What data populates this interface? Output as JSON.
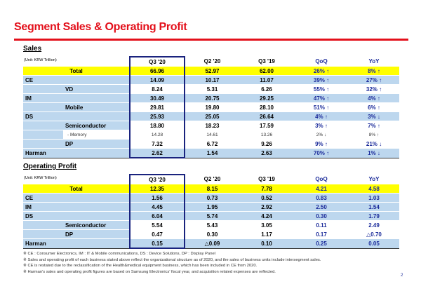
{
  "title": "Segment Sales & Operating Profit",
  "page_number": "2",
  "sales": {
    "label": "Sales",
    "unit": "(Unit: KRW Trillion)",
    "headers": [
      "Q3 '20",
      "Q2 '20",
      "Q3 '19",
      "QoQ",
      "YoY"
    ],
    "rows": [
      {
        "level": "total",
        "name": "Total",
        "sub": "",
        "values": [
          "66.96",
          "52.97",
          "62.00",
          "26% ↑",
          "8% ↑"
        ]
      },
      {
        "level": "seg",
        "name": "CE",
        "sub": "",
        "values": [
          "14.09",
          "10.17",
          "11.07",
          "39% ↑",
          "27% ↑"
        ]
      },
      {
        "level": "sub",
        "name": "",
        "sub": "VD",
        "values": [
          "8.24",
          "5.31",
          "6.26",
          "55% ↑",
          "32% ↑"
        ]
      },
      {
        "level": "seg",
        "name": "IM",
        "sub": "",
        "values": [
          "30.49",
          "20.75",
          "29.25",
          "47% ↑",
          "4% ↑"
        ]
      },
      {
        "level": "sub",
        "name": "",
        "sub": "Mobile",
        "values": [
          "29.81",
          "19.80",
          "28.10",
          "51% ↑",
          "6% ↑"
        ]
      },
      {
        "level": "seg",
        "name": "DS",
        "sub": "",
        "values": [
          "25.93",
          "25.05",
          "26.64",
          "4% ↑",
          "3% ↓"
        ]
      },
      {
        "level": "sub",
        "name": "",
        "sub": "Semiconductor",
        "values": [
          "18.80",
          "18.23",
          "17.59",
          "3% ↑",
          "7% ↑"
        ]
      },
      {
        "level": "subsub",
        "name": "",
        "sub": "- Memory",
        "values": [
          "14.28",
          "14.61",
          "13.26",
          "2% ↓",
          "8% ↑"
        ]
      },
      {
        "level": "sub",
        "name": "",
        "sub": "DP",
        "values": [
          "7.32",
          "6.72",
          "9.26",
          "9% ↑",
          "21% ↓"
        ]
      },
      {
        "level": "seg",
        "name": "Harman",
        "sub": "",
        "values": [
          "2.62",
          "1.54",
          "2.63",
          "70% ↑",
          "1% ↓"
        ]
      }
    ]
  },
  "op": {
    "label": "Operating Profit",
    "unit": "(Unit: KRW Trillion)",
    "headers": [
      "Q3 '20",
      "Q2 '20",
      "Q3 '19",
      "QoQ",
      "YoY"
    ],
    "rows": [
      {
        "level": "total",
        "name": "Total",
        "sub": "",
        "values": [
          "12.35",
          "8.15",
          "7.78",
          "4.21",
          "4.58"
        ]
      },
      {
        "level": "seg",
        "name": "CE",
        "sub": "",
        "values": [
          "1.56",
          "0.73",
          "0.52",
          "0.83",
          "1.03"
        ]
      },
      {
        "level": "seg",
        "name": "IM",
        "sub": "",
        "values": [
          "4.45",
          "1.95",
          "2.92",
          "2.50",
          "1.54"
        ]
      },
      {
        "level": "seg",
        "name": "DS",
        "sub": "",
        "values": [
          "6.04",
          "5.74",
          "4.24",
          "0.30",
          "1.79"
        ]
      },
      {
        "level": "sub",
        "name": "",
        "sub": "Semiconductor",
        "values": [
          "5.54",
          "5.43",
          "3.05",
          "0.11",
          "2.49"
        ]
      },
      {
        "level": "sub",
        "name": "",
        "sub": "DP",
        "values": [
          "0.47",
          "0.30",
          "1.17",
          "0.17",
          "△0.70"
        ]
      },
      {
        "level": "seg",
        "name": "Harman",
        "sub": "",
        "values": [
          "0.15",
          "△0.09",
          "0.10",
          "0.25",
          "0.05"
        ]
      }
    ]
  },
  "notes": [
    "※ CE : Consumer Electronics,  IM : IT & Mobile communications,  DS : Device Solutions,  DP : Display Panel",
    "※ Sales and operating profit of each business stated above reflect the organizational structure  as of 2020, and the sales of business units include intersegment sales.",
    "※ CE is restated due to the reclassification of the Health&medical equipment business, which has been included in CE from 2020.",
    "※ Harman's sales and operating profit figures are based on Samsung Electronics' fiscal year, and acquisition related expenses are reflected."
  ],
  "colors": {
    "accent": "#e3101b",
    "highlight": "#ffff00",
    "segment_fill": "#bdd7ee",
    "current_quarter_border": "#1a237e",
    "change_text": "#1a2a9a"
  }
}
